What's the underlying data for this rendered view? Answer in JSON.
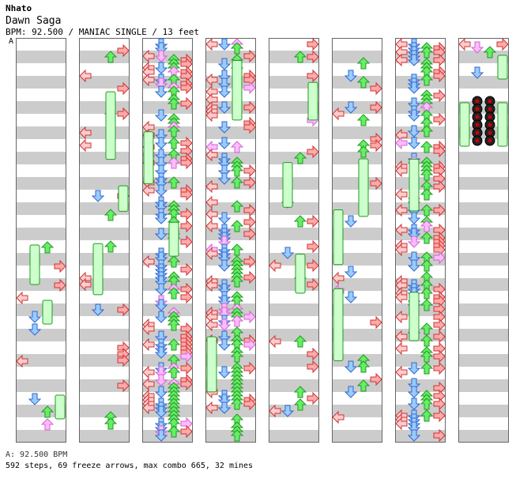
{
  "header": {
    "artist": "Nhato",
    "title": "Dawn Saga",
    "info": "BPM: 92.500 / MANIAC SINGLE / 13 feet"
  },
  "bpm_marker": "A",
  "footer": {
    "bpm_line": "A: 92.500 BPM",
    "stats_line": "592 steps, 69 freeze arrows, max combo 665, 32 mines"
  },
  "colors": {
    "stripe_gray": "#cccccc",
    "stripe_white": "#ffffff",
    "left_arrow": "#ffcccc",
    "down_arrow": "#99ccff",
    "up_arrow": "#66ee66",
    "right_arrow": "#ffaaaa",
    "freeze": "#ccffcc",
    "mine": "#222222",
    "eighth_arrow": "#ffbbff"
  },
  "chart_data": {
    "type": "step-chart",
    "columns": 8,
    "measures_per_column": 8,
    "lanes": [
      "left",
      "down",
      "up",
      "right"
    ],
    "steps": 592,
    "freeze_arrows": 69,
    "max_combo": 665,
    "mines": 32,
    "bpm": 92.5
  }
}
